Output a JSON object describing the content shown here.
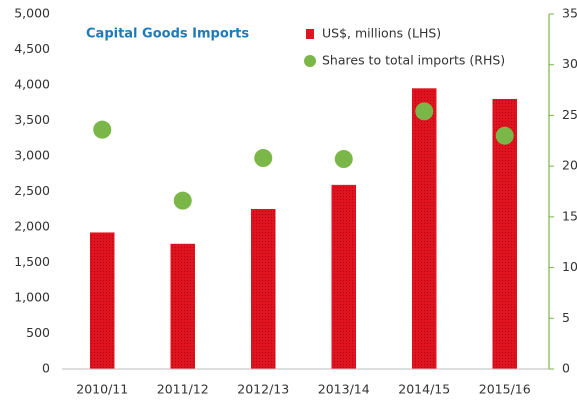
{
  "chart_data": {
    "type": "bar",
    "title": "Capital Goods Imports",
    "categories": [
      "2010/11",
      "2011/12",
      "2012/13",
      "2013/14",
      "2014/15",
      "2015/16"
    ],
    "series": [
      {
        "name": "US$, millions (LHS)",
        "type": "bar",
        "color": "#e0141e",
        "values": [
          1920,
          1760,
          2250,
          2590,
          3950,
          3800
        ]
      },
      {
        "name": "Shares to total imports (RHS)",
        "type": "scatter",
        "axis": "y2",
        "color": "#7ab648",
        "values": [
          23.6,
          16.6,
          20.8,
          20.7,
          25.4,
          23.0
        ]
      }
    ],
    "ylim": [
      0,
      5000
    ],
    "yticks": [
      0,
      500,
      {
        "value": 1000,
        "label": "1,000"
      },
      {
        "value": 1500,
        "label": "1,500"
      },
      {
        "value": 2000,
        "label": "2,000"
      },
      {
        "value": 2500,
        "label": "2,500"
      },
      {
        "value": 3000,
        "label": "3,000"
      },
      {
        "value": 3500,
        "label": "3,500"
      },
      {
        "value": 4000,
        "label": "4,000"
      },
      {
        "value": 4500,
        "label": "4,500"
      },
      {
        "value": 5000,
        "label": "5,000"
      }
    ],
    "y2lim": [
      0,
      35
    ],
    "y2ticks": [
      0,
      5,
      10,
      15,
      20,
      25,
      30,
      35
    ],
    "grid": false,
    "legend": "top-right"
  }
}
